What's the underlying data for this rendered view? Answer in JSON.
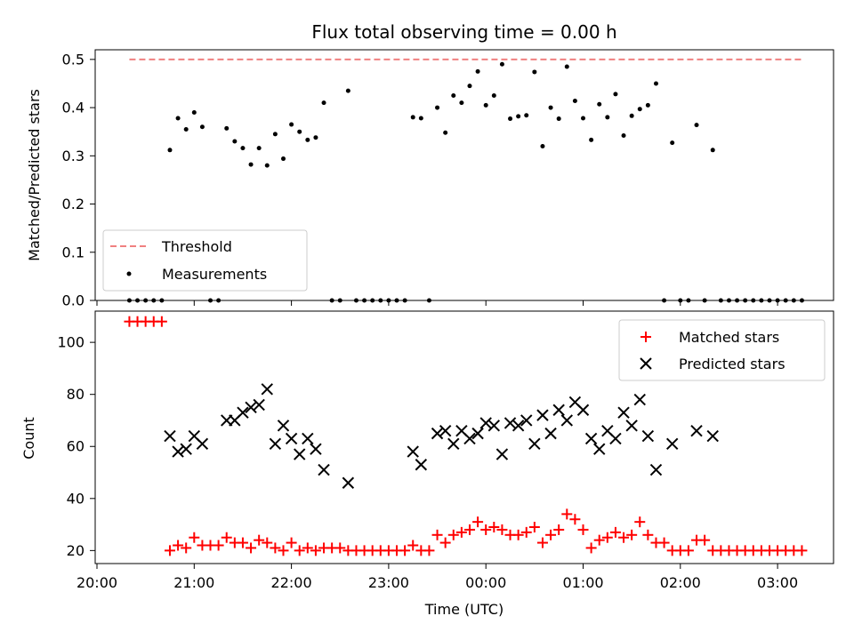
{
  "chart_data": [
    {
      "type": "scatter",
      "title": "Flux total observing time = 0.00 h",
      "xlabel": "",
      "ylabel": "Matched/Predicted stars",
      "ylim": [
        0,
        0.52
      ],
      "yticks": [
        "0.0",
        "0.1",
        "0.2",
        "0.3",
        "0.4",
        "0.5"
      ],
      "legend": {
        "position": "lower-left",
        "entries": [
          {
            "label": "Threshold",
            "marker": "dashed-line",
            "color": "#f08080"
          },
          {
            "label": "Measurements",
            "marker": "dot",
            "color": "#000000"
          }
        ]
      },
      "threshold": {
        "name": "Threshold",
        "value": 0.5,
        "x_range": [
          "20:20",
          "03:15"
        ],
        "color": "#f08080"
      },
      "series": [
        {
          "name": "Measurements",
          "color": "#000000",
          "x": [
            "20:20",
            "20:25",
            "20:30",
            "20:35",
            "20:40",
            "20:45",
            "20:50",
            "20:55",
            "21:00",
            "21:05",
            "21:10",
            "21:15",
            "21:20",
            "21:25",
            "21:30",
            "21:35",
            "21:40",
            "21:45",
            "21:50",
            "21:55",
            "22:00",
            "22:05",
            "22:10",
            "22:15",
            "22:20",
            "22:25",
            "22:30",
            "22:35",
            "22:40",
            "22:45",
            "22:50",
            "22:55",
            "23:00",
            "23:05",
            "23:10",
            "23:15",
            "23:20",
            "23:25",
            "23:30",
            "23:35",
            "23:40",
            "23:45",
            "23:50",
            "23:55",
            "00:00",
            "00:05",
            "00:10",
            "00:15",
            "00:20",
            "00:25",
            "00:30",
            "00:35",
            "00:40",
            "00:45",
            "00:50",
            "00:55",
            "01:00",
            "01:05",
            "01:10",
            "01:15",
            "01:20",
            "01:25",
            "01:30",
            "01:35",
            "01:40",
            "01:45",
            "01:50",
            "01:55",
            "02:00",
            "02:05",
            "02:10",
            "02:15",
            "02:20",
            "02:25",
            "02:30",
            "02:35",
            "02:40",
            "02:45",
            "02:50",
            "02:55",
            "03:00",
            "03:05",
            "03:10",
            "03:15"
          ],
          "y": [
            0.0,
            0.0,
            0.0,
            0.0,
            0.0,
            0.312,
            0.378,
            0.355,
            0.39,
            0.36,
            0.0,
            0.0,
            0.357,
            0.33,
            0.316,
            0.282,
            0.316,
            0.28,
            0.345,
            0.294,
            0.365,
            0.35,
            0.333,
            0.338,
            0.41,
            0.0,
            0.0,
            0.435,
            0.0,
            0.0,
            0.0,
            0.0,
            0.0,
            0.0,
            0.0,
            0.38,
            0.378,
            0.0,
            0.4,
            0.348,
            0.425,
            0.41,
            0.445,
            0.475,
            0.405,
            0.425,
            0.49,
            0.377,
            0.382,
            0.384,
            0.474,
            0.32,
            0.4,
            0.377,
            0.485,
            0.414,
            0.378,
            0.333,
            0.407,
            0.38,
            0.428,
            0.342,
            0.383,
            0.397,
            0.405,
            0.45,
            0.0,
            0.327,
            0.0,
            0.0,
            0.364,
            0.0,
            0.312,
            0.0,
            0.0,
            0.0,
            0.0,
            0.0,
            0.0,
            0.0,
            0.0,
            0.0,
            0.0,
            0.0
          ]
        }
      ]
    },
    {
      "type": "scatter",
      "title": "",
      "xlabel": "Time (UTC)",
      "ylabel": "Count",
      "ylim": [
        15,
        112
      ],
      "yticks": [
        "20",
        "40",
        "60",
        "80",
        "100"
      ],
      "xticks": [
        "20:00",
        "21:00",
        "22:00",
        "23:00",
        "00:00",
        "01:00",
        "02:00",
        "03:00"
      ],
      "legend": {
        "position": "upper-right",
        "entries": [
          {
            "label": "Matched stars",
            "marker": "plus",
            "color": "#ff0000"
          },
          {
            "label": "Predicted stars",
            "marker": "x",
            "color": "#000000"
          }
        ]
      },
      "series": [
        {
          "name": "Matched stars",
          "color": "#ff0000",
          "marker": "plus",
          "x": [
            "20:20",
            "20:25",
            "20:30",
            "20:35",
            "20:40",
            "20:45",
            "20:50",
            "20:55",
            "21:00",
            "21:05",
            "21:10",
            "21:15",
            "21:20",
            "21:25",
            "21:30",
            "21:35",
            "21:40",
            "21:45",
            "21:50",
            "21:55",
            "22:00",
            "22:05",
            "22:10",
            "22:15",
            "22:20",
            "22:25",
            "22:30",
            "22:35",
            "22:40",
            "22:45",
            "22:50",
            "22:55",
            "23:00",
            "23:05",
            "23:10",
            "23:15",
            "23:20",
            "23:25",
            "23:30",
            "23:35",
            "23:40",
            "23:45",
            "23:50",
            "23:55",
            "00:00",
            "00:05",
            "00:10",
            "00:15",
            "00:20",
            "00:25",
            "00:30",
            "00:35",
            "00:40",
            "00:45",
            "00:50",
            "00:55",
            "01:00",
            "01:05",
            "01:10",
            "01:15",
            "01:20",
            "01:25",
            "01:30",
            "01:35",
            "01:40",
            "01:45",
            "01:50",
            "01:55",
            "02:00",
            "02:05",
            "02:10",
            "02:15",
            "02:20",
            "02:25",
            "02:30",
            "02:35",
            "02:40",
            "02:45",
            "02:50",
            "02:55",
            "03:00",
            "03:05",
            "03:10",
            "03:15"
          ],
          "y": [
            108,
            108,
            108,
            108,
            108,
            20,
            22,
            21,
            25,
            22,
            22,
            22,
            25,
            23,
            23,
            21,
            24,
            23,
            21,
            20,
            23,
            20,
            21,
            20,
            21,
            21,
            21,
            20,
            20,
            20,
            20,
            20,
            20,
            20,
            20,
            22,
            20,
            20,
            26,
            23,
            26,
            27,
            28,
            31,
            28,
            29,
            28,
            26,
            26,
            27,
            29,
            23,
            26,
            28,
            34,
            32,
            28,
            21,
            24,
            25,
            27,
            25,
            26,
            31,
            26,
            23,
            23,
            20,
            20,
            20,
            24,
            24,
            20,
            20,
            20,
            20,
            20,
            20,
            20,
            20,
            20,
            20,
            20,
            20
          ]
        },
        {
          "name": "Predicted stars",
          "color": "#000000",
          "marker": "x",
          "x": [
            "20:45",
            "20:50",
            "20:55",
            "21:00",
            "21:05",
            "21:20",
            "21:25",
            "21:30",
            "21:35",
            "21:40",
            "21:45",
            "21:50",
            "21:55",
            "22:00",
            "22:05",
            "22:10",
            "22:15",
            "22:20",
            "22:35",
            "23:15",
            "23:20",
            "23:30",
            "23:35",
            "23:40",
            "23:45",
            "23:50",
            "23:55",
            "00:00",
            "00:05",
            "00:10",
            "00:15",
            "00:20",
            "00:25",
            "00:30",
            "00:35",
            "00:40",
            "00:45",
            "00:50",
            "00:55",
            "01:00",
            "01:05",
            "01:10",
            "01:15",
            "01:20",
            "01:25",
            "01:30",
            "01:35",
            "01:40",
            "01:45",
            "01:55",
            "02:10",
            "02:20"
          ],
          "y": [
            64,
            58,
            59,
            64,
            61,
            70,
            70,
            73,
            75,
            76,
            82,
            61,
            68,
            63,
            57,
            63,
            59,
            51,
            46,
            58,
            53,
            65,
            66,
            61,
            66,
            63,
            65,
            69,
            68,
            57,
            69,
            68,
            70,
            61,
            72,
            65,
            74,
            70,
            77,
            74,
            63,
            59,
            66,
            63,
            73,
            68,
            78,
            64,
            51,
            61,
            66,
            64
          ]
        }
      ]
    }
  ]
}
